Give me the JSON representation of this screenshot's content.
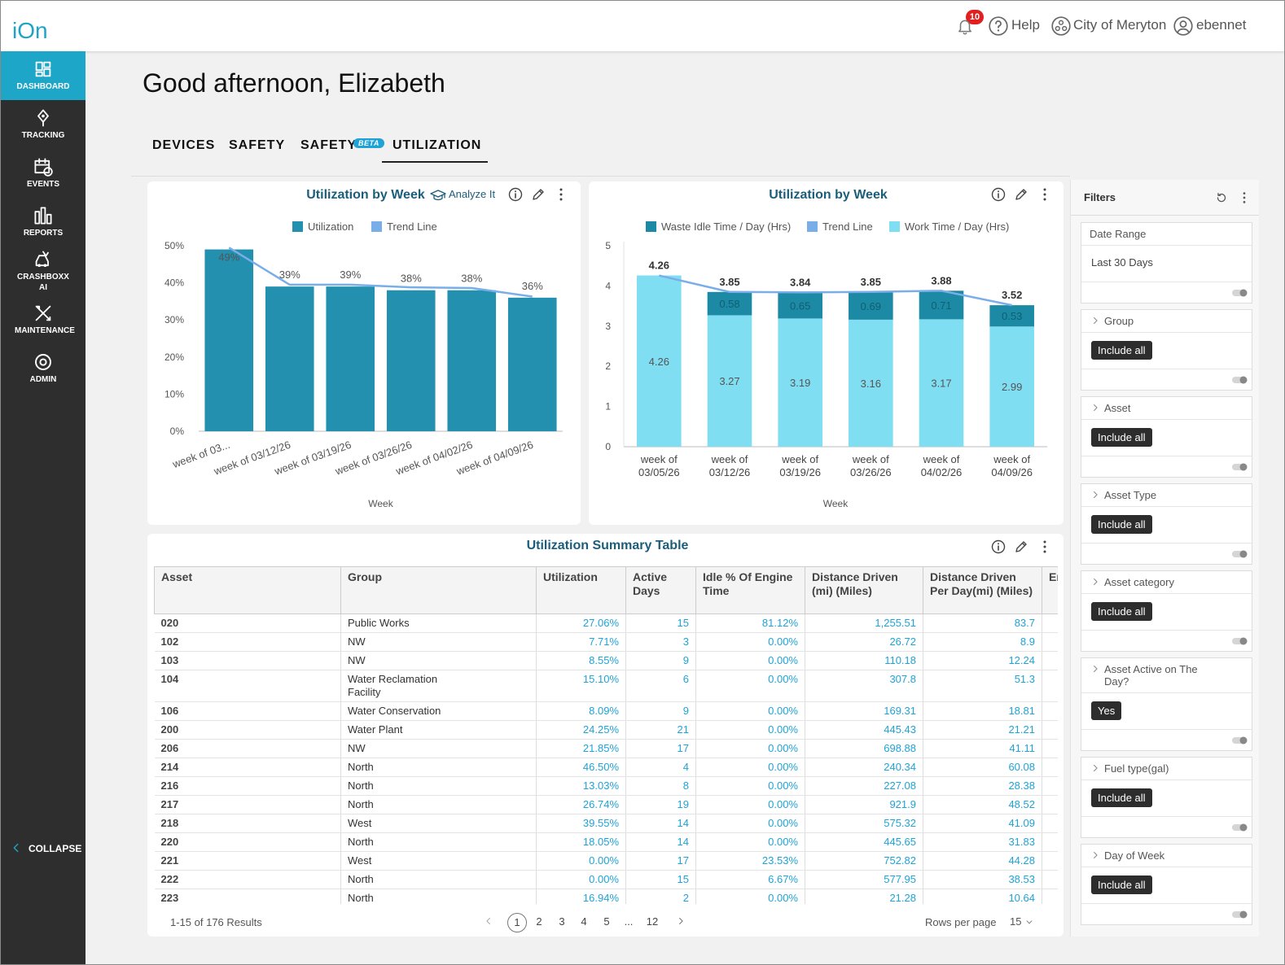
{
  "header": {
    "logo": "iOn",
    "notifications": "10",
    "help": "Help",
    "organization": "City of Meryton",
    "user": "ebennet"
  },
  "sidebar": {
    "items": [
      "DASHBOARD",
      "TRACKING",
      "EVENTS",
      "REPORTS",
      "CRASHBOXX AI",
      "MAINTENANCE",
      "ADMIN"
    ],
    "collapse": "COLLAPSE"
  },
  "greeting": "Good afternoon, Elizabeth",
  "tabs": {
    "items": [
      "DEVICES",
      "SAFETY",
      "SAFETY",
      "UTILIZATION"
    ],
    "badge": "BETA"
  },
  "chart_data": [
    {
      "type": "bar",
      "title": "Utilization by Week",
      "action": "Analyze It",
      "xlabel": "Week",
      "categories": [
        "week of 03...",
        "week of 03/12/26",
        "week of 03/19/26",
        "week of 03/26/26",
        "week of 04/02/26",
        "week of 04/09/26"
      ],
      "ylim": [
        0,
        50
      ],
      "yticks": [
        {
          "value": 0,
          "label": "0%"
        },
        {
          "value": 10,
          "label": "10%"
        },
        {
          "value": 20,
          "label": "20%"
        },
        {
          "value": 30,
          "label": "30%"
        },
        {
          "value": 40,
          "label": "40%"
        },
        {
          "value": 50,
          "label": "50%"
        }
      ],
      "grid": false,
      "series": [
        {
          "name": "Utilization",
          "type": "bar",
          "color": "#2290ae",
          "values": [
            49,
            39,
            39,
            38,
            38,
            36
          ],
          "value_labels": [
            "49%",
            "39%",
            "39%",
            "38%",
            "38%",
            "36%"
          ]
        },
        {
          "name": "Trend Line",
          "type": "line",
          "color": "#7aaee8",
          "values": [
            49.5,
            39.5,
            39.5,
            38.8,
            38.6,
            36.3
          ]
        }
      ]
    },
    {
      "type": "bar",
      "stacked": true,
      "data_labels": true,
      "title": "Utilization by Week",
      "xlabel": "Week",
      "categories": [
        "week of 03/05/26",
        "week of 03/12/26",
        "week of 03/19/26",
        "week of 03/26/26",
        "week of 04/02/26",
        "week of 04/09/26"
      ],
      "ylim": [
        0,
        5
      ],
      "yticks": [
        0,
        1,
        2,
        3,
        4,
        5
      ],
      "grid": false,
      "series": [
        {
          "name": "Waste Idle Time / Day (Hrs)",
          "type": "bar",
          "color": "#1d8aa5",
          "values": [
            null,
            0.58,
            0.65,
            0.69,
            0.71,
            0.53
          ]
        },
        {
          "name": "Trend Line",
          "type": "line",
          "color": "#7aaee8",
          "values": [
            4.26,
            3.85,
            3.84,
            3.85,
            3.88,
            3.52
          ]
        },
        {
          "name": "Work Time / Day (Hrs)",
          "type": "bar",
          "color": "#80def2",
          "values": [
            4.26,
            3.27,
            3.19,
            3.16,
            3.17,
            2.99
          ]
        }
      ]
    }
  ],
  "table": {
    "title": "Utilization Summary Table",
    "columns": [
      "Asset",
      "Group",
      "Utilization",
      "Active Days",
      "Idle % Of Engine Time",
      "Distance Driven (mi) (Miles)",
      "Distance Driven Per Day(mi) (Miles)",
      "Engine Time"
    ],
    "rows": [
      [
        "020",
        "Public Works",
        "27.06%",
        "15",
        "81.12%",
        "1,255.51",
        "83.7"
      ],
      [
        "102",
        "NW",
        "7.71%",
        "3",
        "0.00%",
        "26.72",
        "8.9"
      ],
      [
        "103",
        "NW",
        "8.55%",
        "9",
        "0.00%",
        "110.18",
        "12.24"
      ],
      [
        "104",
        "Water Reclamation Facility",
        "15.10%",
        "6",
        "0.00%",
        "307.8",
        "51.3"
      ],
      [
        "106",
        "Water Conservation",
        "8.09%",
        "9",
        "0.00%",
        "169.31",
        "18.81"
      ],
      [
        "200",
        "Water Plant",
        "24.25%",
        "21",
        "0.00%",
        "445.43",
        "21.21"
      ],
      [
        "206",
        "NW",
        "21.85%",
        "17",
        "0.00%",
        "698.88",
        "41.11"
      ],
      [
        "214",
        "North",
        "46.50%",
        "4",
        "0.00%",
        "240.34",
        "60.08"
      ],
      [
        "216",
        "North",
        "13.03%",
        "8",
        "0.00%",
        "227.08",
        "28.38"
      ],
      [
        "217",
        "North",
        "26.74%",
        "19",
        "0.00%",
        "921.9",
        "48.52"
      ],
      [
        "218",
        "West",
        "39.55%",
        "14",
        "0.00%",
        "575.32",
        "41.09"
      ],
      [
        "220",
        "North",
        "18.05%",
        "14",
        "0.00%",
        "445.65",
        "31.83"
      ],
      [
        "221",
        "West",
        "0.00%",
        "17",
        "23.53%",
        "752.82",
        "44.28"
      ],
      [
        "222",
        "North",
        "0.00%",
        "15",
        "6.67%",
        "577.95",
        "38.53"
      ],
      [
        "223",
        "North",
        "16.94%",
        "2",
        "0.00%",
        "21.28",
        "10.64"
      ]
    ],
    "footer": {
      "results": "1-15 of 176 Results",
      "pages": [
        "1",
        "2",
        "3",
        "4",
        "5",
        "...",
        "12"
      ],
      "rows_per_page": "Rows per page",
      "page_size": "15"
    }
  },
  "filters": {
    "title": "Filters",
    "items": [
      {
        "label": "Date Range",
        "value": "Last 30 Days"
      },
      {
        "label": "Group",
        "value": "Include all"
      },
      {
        "label": "Asset",
        "value": "Include all"
      },
      {
        "label": "Asset Type",
        "value": "Include all"
      },
      {
        "label": "Asset category",
        "value": "Include all"
      },
      {
        "label": "Asset Active on The Day?",
        "value": "Yes"
      },
      {
        "label": "Fuel type(gal)",
        "value": "Include all"
      },
      {
        "label": "Day of Week",
        "value": "Include all"
      }
    ]
  }
}
